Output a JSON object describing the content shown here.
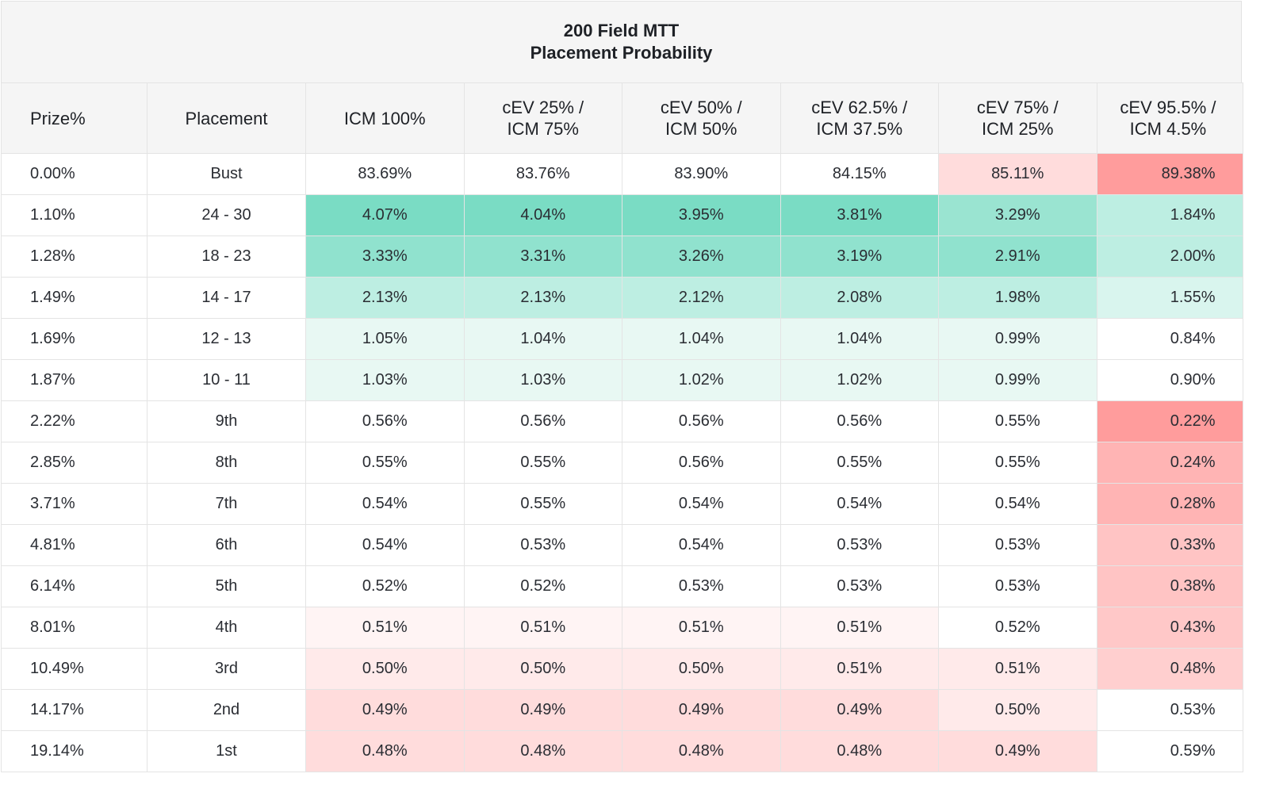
{
  "title": {
    "line1": "200 Field MTT",
    "line2": "Placement Probability"
  },
  "chart_data": {
    "type": "table",
    "title": "200 Field MTT Placement Probability",
    "headers": [
      [
        "Prize%"
      ],
      [
        "Placement"
      ],
      [
        "ICM 100%"
      ],
      [
        "cEV 25% /",
        "ICM 75%"
      ],
      [
        "cEV 50% /",
        "ICM 50%"
      ],
      [
        "cEV 62.5% /",
        "ICM 37.5%"
      ],
      [
        "cEV 75% /",
        "ICM 25%"
      ],
      [
        "cEV 95.5% /",
        "ICM 4.5%"
      ]
    ],
    "rows": [
      [
        "0.00%",
        "Bust",
        "83.69%",
        "83.76%",
        "83.90%",
        "84.15%",
        "85.11%",
        "89.38%"
      ],
      [
        "1.10%",
        "24 - 30",
        "4.07%",
        "4.04%",
        "3.95%",
        "3.81%",
        "3.29%",
        "1.84%"
      ],
      [
        "1.28%",
        "18 - 23",
        "3.33%",
        "3.31%",
        "3.26%",
        "3.19%",
        "2.91%",
        "2.00%"
      ],
      [
        "1.49%",
        "14 - 17",
        "2.13%",
        "2.13%",
        "2.12%",
        "2.08%",
        "1.98%",
        "1.55%"
      ],
      [
        "1.69%",
        "12 - 13",
        "1.05%",
        "1.04%",
        "1.04%",
        "1.04%",
        "0.99%",
        "0.84%"
      ],
      [
        "1.87%",
        "10 - 11",
        "1.03%",
        "1.03%",
        "1.02%",
        "1.02%",
        "0.99%",
        "0.90%"
      ],
      [
        "2.22%",
        "9th",
        "0.56%",
        "0.56%",
        "0.56%",
        "0.56%",
        "0.55%",
        "0.22%"
      ],
      [
        "2.85%",
        "8th",
        "0.55%",
        "0.55%",
        "0.56%",
        "0.55%",
        "0.55%",
        "0.24%"
      ],
      [
        "3.71%",
        "7th",
        "0.54%",
        "0.55%",
        "0.54%",
        "0.54%",
        "0.54%",
        "0.28%"
      ],
      [
        "4.81%",
        "6th",
        "0.54%",
        "0.53%",
        "0.54%",
        "0.53%",
        "0.53%",
        "0.33%"
      ],
      [
        "6.14%",
        "5th",
        "0.52%",
        "0.52%",
        "0.53%",
        "0.53%",
        "0.53%",
        "0.38%"
      ],
      [
        "8.01%",
        "4th",
        "0.51%",
        "0.51%",
        "0.51%",
        "0.51%",
        "0.52%",
        "0.43%"
      ],
      [
        "10.49%",
        "3rd",
        "0.50%",
        "0.50%",
        "0.50%",
        "0.51%",
        "0.51%",
        "0.48%"
      ],
      [
        "14.17%",
        "2nd",
        "0.49%",
        "0.49%",
        "0.49%",
        "0.49%",
        "0.50%",
        "0.53%"
      ],
      [
        "19.14%",
        "1st",
        "0.48%",
        "0.48%",
        "0.48%",
        "0.48%",
        "0.49%",
        "0.59%"
      ]
    ],
    "cell_colors": [
      [
        "",
        "",
        "#ffffff",
        "#ffffff",
        "#ffffff",
        "#ffffff",
        "#ffdcdc",
        "#ff9c9c"
      ],
      [
        "",
        "",
        "#7adcc4",
        "#7adcc4",
        "#7adcc4",
        "#7adcc4",
        "#9ae4d1",
        "#bdeee2"
      ],
      [
        "",
        "",
        "#90e2ce",
        "#90e2ce",
        "#90e2ce",
        "#90e2ce",
        "#90e2ce",
        "#bdeee2"
      ],
      [
        "",
        "",
        "#bdeee2",
        "#bdeee2",
        "#bdeee2",
        "#bdeee2",
        "#bdeee2",
        "#d9f5ee"
      ],
      [
        "",
        "",
        "#e8f8f3",
        "#e8f8f3",
        "#e8f8f3",
        "#e8f8f3",
        "#e8f8f3",
        "#ffffff"
      ],
      [
        "",
        "",
        "#e8f8f3",
        "#e8f8f3",
        "#e8f8f3",
        "#e8f8f3",
        "#e8f8f3",
        "#ffffff"
      ],
      [
        "",
        "",
        "#ffffff",
        "#ffffff",
        "#ffffff",
        "#ffffff",
        "#ffffff",
        "#ff9c9c"
      ],
      [
        "",
        "",
        "#ffffff",
        "#ffffff",
        "#ffffff",
        "#ffffff",
        "#ffffff",
        "#ffb4b4"
      ],
      [
        "",
        "",
        "#ffffff",
        "#ffffff",
        "#ffffff",
        "#ffffff",
        "#ffffff",
        "#ffb4b4"
      ],
      [
        "",
        "",
        "#ffffff",
        "#ffffff",
        "#ffffff",
        "#ffffff",
        "#ffffff",
        "#ffc4c4"
      ],
      [
        "",
        "",
        "#ffffff",
        "#ffffff",
        "#ffffff",
        "#ffffff",
        "#ffffff",
        "#ffc4c4"
      ],
      [
        "",
        "",
        "#fff4f4",
        "#fff4f4",
        "#fff4f4",
        "#fff4f4",
        "#ffffff",
        "#ffc8c8"
      ],
      [
        "",
        "",
        "#ffeaea",
        "#ffeaea",
        "#ffeaea",
        "#ffeaea",
        "#ffeaea",
        "#ffcfcf"
      ],
      [
        "",
        "",
        "#ffdcdc",
        "#ffdcdc",
        "#ffdcdc",
        "#ffdcdc",
        "#ffeaea",
        "#ffffff"
      ],
      [
        "",
        "",
        "#ffdcdc",
        "#ffdcdc",
        "#ffdcdc",
        "#ffdcdc",
        "#ffdcdc",
        "#ffffff"
      ]
    ]
  }
}
